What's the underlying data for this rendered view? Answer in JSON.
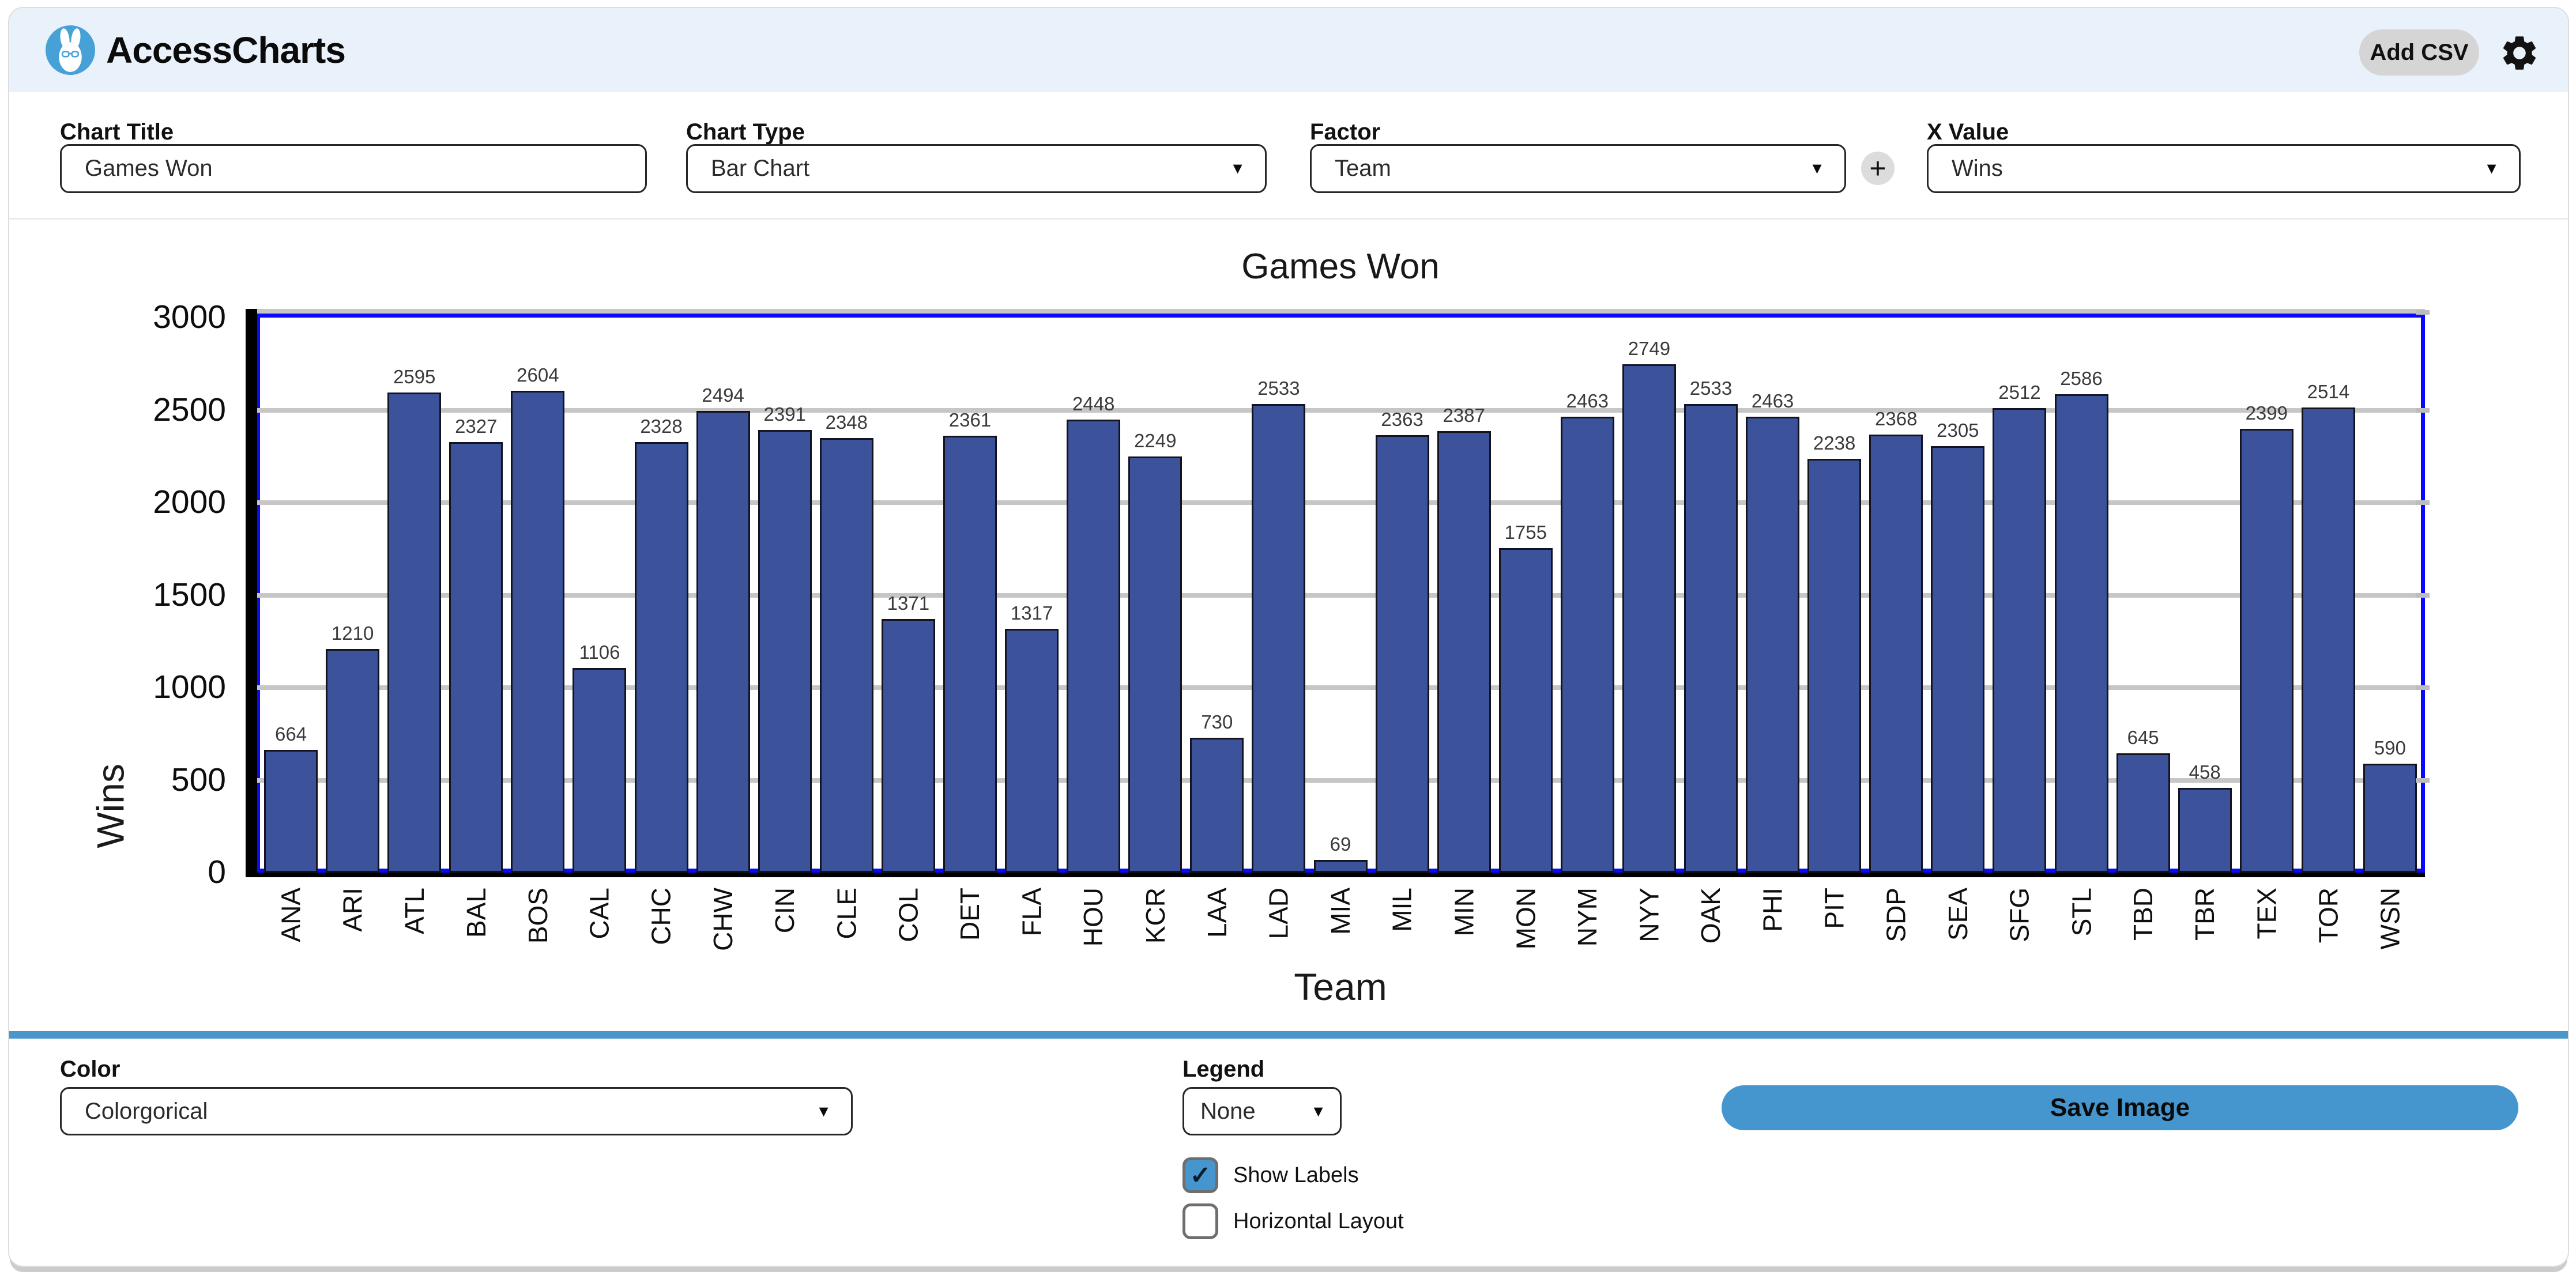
{
  "header": {
    "app_name": "AccessCharts",
    "add_csv_label": "Add CSV"
  },
  "controls": {
    "chart_title": {
      "label": "Chart Title",
      "value": "Games Won"
    },
    "chart_type": {
      "label": "Chart Type",
      "value": "Bar Chart"
    },
    "factor": {
      "label": "Factor",
      "value": "Team"
    },
    "x_value": {
      "label": "X Value",
      "value": "Wins"
    }
  },
  "icons": {
    "dropdown": "▼",
    "plus": "+",
    "check": "✓"
  },
  "chart_data": {
    "type": "bar",
    "title": "Games Won",
    "xlabel": "Team",
    "ylabel": "Wins",
    "ylim": [
      0,
      3000
    ],
    "yticks": [
      0,
      500,
      1000,
      1500,
      2000,
      2500,
      3000
    ],
    "grid": true,
    "legend_position": "none",
    "show_labels": true,
    "categories": [
      "ANA",
      "ARI",
      "ATL",
      "BAL",
      "BOS",
      "CAL",
      "CHC",
      "CHW",
      "CIN",
      "CLE",
      "COL",
      "DET",
      "FLA",
      "HOU",
      "KCR",
      "LAA",
      "LAD",
      "MIA",
      "MIL",
      "MIN",
      "MON",
      "NYM",
      "NYY",
      "OAK",
      "PHI",
      "PIT",
      "SDP",
      "SEA",
      "SFG",
      "STL",
      "TBD",
      "TBR",
      "TEX",
      "TOR",
      "WSN"
    ],
    "values": [
      664,
      1210,
      2595,
      2327,
      2604,
      1106,
      2328,
      2494,
      2391,
      2348,
      1371,
      2361,
      1317,
      2448,
      2249,
      730,
      2533,
      69,
      2363,
      2387,
      1755,
      2463,
      2749,
      2533,
      2463,
      2238,
      2368,
      2305,
      2512,
      2586,
      645,
      458,
      2399,
      2514,
      590
    ]
  },
  "footer": {
    "color": {
      "label": "Color",
      "value": "Colorgorical"
    },
    "legend": {
      "label": "Legend",
      "value": "None"
    },
    "save_button": "Save Image",
    "checkboxes": [
      {
        "label": "Show Labels",
        "checked": true
      },
      {
        "label": "Horizontal Layout",
        "checked": false
      }
    ]
  },
  "colors": {
    "bar_fill": "#3c539b",
    "bar_edge": "#13131f",
    "plot_border": "#0909ff",
    "gridline": "#c6c6c6",
    "accent_blue": "#4596ce",
    "divider_blue": "#4a96cb",
    "header_bg": "#e9f2fa",
    "logo_blue": "#47a0d6",
    "add_csv_bg": "#d5d5d5"
  }
}
